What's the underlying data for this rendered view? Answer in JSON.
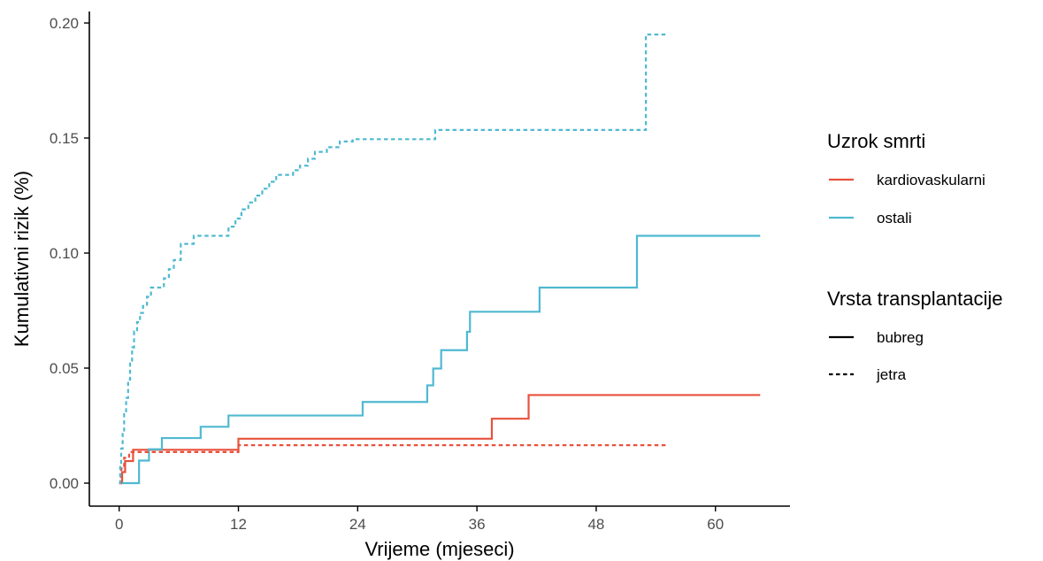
{
  "chart_data": {
    "type": "line",
    "step": true,
    "xlabel": "Vrijeme (mjeseci)",
    "ylabel": "Kumulativni rizik (%)",
    "xlim": [
      -3,
      67.5
    ],
    "ylim": [
      -0.01,
      0.205
    ],
    "x_ticks": [
      0,
      12,
      24,
      36,
      48,
      60
    ],
    "y_ticks": [
      0.0,
      0.05,
      0.1,
      0.15,
      0.2
    ],
    "y_tick_labels": [
      "0.00",
      "0.05",
      "0.10",
      "0.15",
      "0.20"
    ],
    "grid": false,
    "colors": {
      "kardiovaskularni": "#E8513D",
      "ostali": "#4FB9D1"
    },
    "legend": {
      "position": "right",
      "groups": [
        {
          "title": "Uzrok smrti",
          "entries": [
            {
              "label": "kardiovaskularni",
              "color_key": "kardiovaskularni"
            },
            {
              "label": "ostali",
              "color_key": "ostali"
            }
          ]
        },
        {
          "title": "Vrsta transplantacije",
          "entries": [
            {
              "label": "bubreg",
              "linetype": "solid"
            },
            {
              "label": "jetra",
              "linetype": "dashed"
            }
          ]
        }
      ]
    },
    "series": [
      {
        "cause": "kardiovaskularni",
        "transplant": "bubreg",
        "x": [
          0,
          0.3,
          0.6,
          1.4,
          12.0,
          37.5,
          41.2,
          64.5
        ],
        "y": [
          0,
          0.0048,
          0.0096,
          0.0145,
          0.0193,
          0.028,
          0.0383,
          0.0383
        ]
      },
      {
        "cause": "ostali",
        "transplant": "bubreg",
        "x": [
          0,
          2.0,
          3.0,
          4.3,
          8.2,
          11.0,
          24.5,
          31.0,
          31.6,
          32.4,
          35.0,
          35.3,
          35.7,
          42.3,
          52.1,
          64.5
        ],
        "y": [
          0,
          0.0098,
          0.0147,
          0.0196,
          0.0245,
          0.0294,
          0.0353,
          0.0425,
          0.0498,
          0.0578,
          0.0658,
          0.0745,
          0.0745,
          0.085,
          0.1075,
          0.1075
        ]
      },
      {
        "cause": "kardiovaskularni",
        "transplant": "jetra",
        "x": [
          0,
          0.2,
          0.5,
          1.0,
          12.0,
          55.0
        ],
        "y": [
          0,
          0.0064,
          0.011,
          0.0135,
          0.0165,
          0.0165
        ]
      },
      {
        "cause": "ostali",
        "transplant": "jetra",
        "x": [
          0,
          0.1,
          0.2,
          0.35,
          0.5,
          0.7,
          0.9,
          1.1,
          1.3,
          1.5,
          1.8,
          2.1,
          2.4,
          2.8,
          3.2,
          4.5,
          5.0,
          5.5,
          6.2,
          7.5,
          11.0,
          11.7,
          12.3,
          13.0,
          13.7,
          14.4,
          15.1,
          15.8,
          17.5,
          18.2,
          19.0,
          19.7,
          20.9,
          22.2,
          23.5,
          31.8,
          35.0,
          42.0,
          53.0,
          55.0
        ],
        "y": [
          0,
          0.008,
          0.015,
          0.022,
          0.03,
          0.037,
          0.045,
          0.052,
          0.059,
          0.066,
          0.07,
          0.074,
          0.077,
          0.081,
          0.085,
          0.089,
          0.093,
          0.097,
          0.104,
          0.1075,
          0.1115,
          0.115,
          0.119,
          0.122,
          0.125,
          0.128,
          0.131,
          0.134,
          0.136,
          0.138,
          0.141,
          0.144,
          0.146,
          0.1485,
          0.1495,
          0.1535,
          0.1535,
          0.1535,
          0.195,
          0.195
        ]
      }
    ]
  }
}
